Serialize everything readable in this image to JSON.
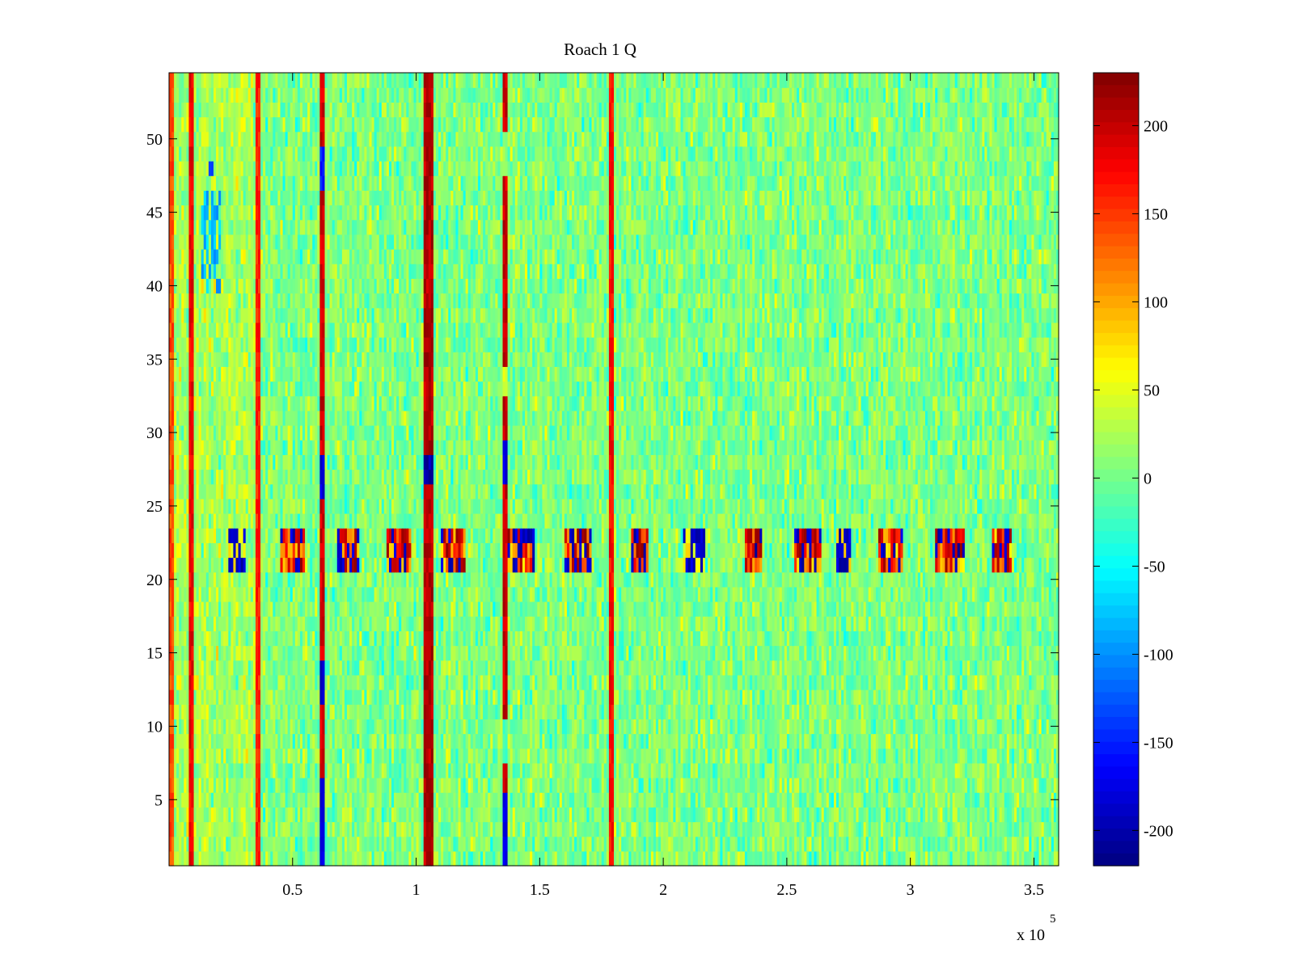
{
  "chart_data": {
    "type": "heatmap",
    "title": "Roach 1 Q",
    "xlabel": "",
    "ylabel": "",
    "x_multiplier_label": "x 10",
    "x_multiplier_exponent": "5",
    "xlim": [
      0,
      360000
    ],
    "ylim": [
      0.5,
      54.5
    ],
    "rows": 54,
    "columns": 360,
    "x_ticks": [
      0.5,
      1,
      1.5,
      2,
      2.5,
      3,
      3.5
    ],
    "x_tick_labels": [
      "0.5",
      "1",
      "1.5",
      "2",
      "2.5",
      "3",
      "3.5"
    ],
    "y_ticks": [
      5,
      10,
      15,
      20,
      25,
      30,
      35,
      40,
      45,
      50
    ],
    "y_tick_labels": [
      "5",
      "10",
      "15",
      "20",
      "25",
      "30",
      "35",
      "40",
      "45",
      "50"
    ],
    "colormap": "jet",
    "clim": [
      -220,
      230
    ],
    "colorbar_ticks": [
      200,
      150,
      100,
      50,
      0,
      -50,
      -100,
      -150,
      -200
    ],
    "colorbar_tick_labels": [
      "200",
      "150",
      "100",
      "50",
      "0",
      "-50",
      "-100",
      "-150",
      "-200"
    ],
    "background_level": 5,
    "strong_columns": [
      {
        "x": 1000,
        "level": 160
      },
      {
        "x": 9000,
        "level": 200
      },
      {
        "x": 36000,
        "level": 180
      },
      {
        "x": 62000,
        "level": 215,
        "dropouts": [
          [
            47,
            49,
            -150
          ],
          [
            26,
            28,
            -180
          ],
          [
            1,
            6,
            -180
          ],
          [
            12,
            14,
            -190
          ]
        ]
      },
      {
        "x": 105000,
        "level": 225,
        "width": 4000,
        "dropouts": [
          [
            27,
            28.5,
            -200
          ]
        ]
      },
      {
        "x": 136000,
        "level": 215,
        "dropouts": [
          [
            48,
            50,
            10
          ],
          [
            33,
            34,
            50
          ],
          [
            27,
            29,
            -180
          ],
          [
            8,
            10,
            -20
          ],
          [
            1,
            5,
            -170
          ]
        ]
      },
      {
        "x": 179000,
        "level": 190
      }
    ],
    "blue_patches": [
      {
        "x": [
          13000,
          20000
        ],
        "y": [
          47.5,
          48.5
        ],
        "level": -150
      },
      {
        "x": [
          13000,
          21000
        ],
        "y": [
          40,
          46
        ],
        "level": -80
      }
    ],
    "band_rows": [
      21,
      23
    ],
    "band_segments": [
      [
        24000,
        31000,
        "blue"
      ],
      [
        45000,
        55000,
        "mixed"
      ],
      [
        68000,
        77000,
        "mixed"
      ],
      [
        88000,
        98000,
        "mixed"
      ],
      [
        110000,
        120000,
        "mixed"
      ],
      [
        137000,
        148000,
        "mixed"
      ],
      [
        160000,
        171000,
        "mixed"
      ],
      [
        187000,
        194000,
        "mixed"
      ],
      [
        208000,
        217000,
        "blue"
      ],
      [
        233000,
        240000,
        "mixed"
      ],
      [
        253000,
        264000,
        "mixed"
      ],
      [
        270000,
        276000,
        "blue"
      ],
      [
        287000,
        297000,
        "mixed"
      ],
      [
        310000,
        322000,
        "mixed"
      ],
      [
        333000,
        341000,
        "mixed"
      ]
    ]
  }
}
